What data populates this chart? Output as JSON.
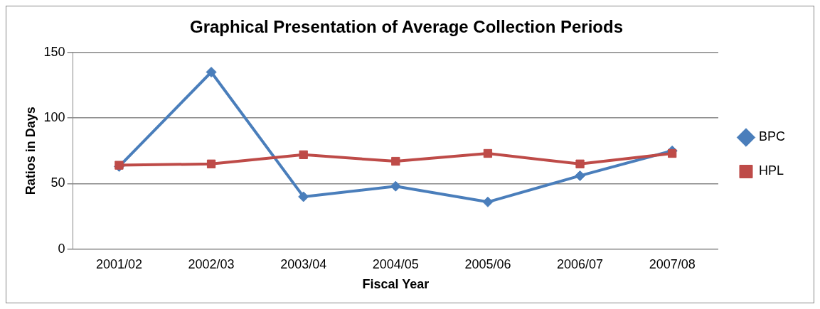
{
  "chart_data": {
    "type": "line",
    "title": "Graphical Presentation of Average Collection Periods",
    "xlabel": "Fiscal Year",
    "ylabel": "Ratios in Days",
    "categories": [
      "2001/02",
      "2002/03",
      "2003/04",
      "2004/05",
      "2005/06",
      "2006/07",
      "2007/08"
    ],
    "series": [
      {
        "name": "BPC",
        "color": "#4a7ebb",
        "marker": "diamond",
        "values": [
          63,
          135,
          40,
          48,
          36,
          56,
          75
        ]
      },
      {
        "name": "HPL",
        "color": "#be4b48",
        "marker": "square",
        "values": [
          64,
          65,
          72,
          67,
          73,
          65,
          73
        ]
      }
    ],
    "ylim": [
      0,
      150
    ],
    "yticks": [
      0,
      50,
      100,
      150
    ],
    "grid": "y",
    "legend": "right"
  }
}
